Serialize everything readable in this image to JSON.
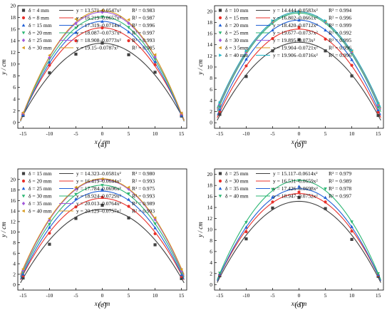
{
  "chart_data": [
    {
      "type": "scatter",
      "panel_label": "(a)",
      "xlabel": "x / cm",
      "ylabel": "y / cm",
      "xlim": [
        -16,
        16
      ],
      "ylim": [
        -1,
        20
      ],
      "xticks": [
        -15,
        -10,
        -5,
        0,
        5,
        10,
        15
      ],
      "yticks": [
        0,
        2,
        4,
        6,
        8,
        10,
        12,
        14,
        16,
        18,
        20
      ],
      "grid": false,
      "legend_position": "top",
      "series": [
        {
          "name": "δ = 4 mm",
          "marker": "square",
          "color": "#404040",
          "equation": "y = 13.571–0.0547x²",
          "r2": "R² = 0.983",
          "a": 13.571,
          "b": 0.0547,
          "points": [
            [
              -15,
              1.2
            ],
            [
              -10,
              8.5
            ],
            [
              -5,
              11.7
            ],
            [
              0,
              13.6
            ],
            [
              5,
              11.6
            ],
            [
              10,
              8.6
            ],
            [
              15,
              1.1
            ]
          ]
        },
        {
          "name": "δ = 8 mm",
          "marker": "circle",
          "color": "#e8302a",
          "equation": "y = 16.219–0.0657x²",
          "r2": "R² = 0.987",
          "a": 16.219,
          "b": 0.0657,
          "points": [
            [
              -15,
              1.4
            ],
            [
              -10,
              9.8
            ],
            [
              -5,
              14.0
            ],
            [
              0,
              16.2
            ],
            [
              5,
              14.0
            ],
            [
              10,
              9.9
            ],
            [
              15,
              1.3
            ]
          ]
        },
        {
          "name": "δ = 15 mm",
          "marker": "triangle-up",
          "color": "#1f5fd6",
          "equation": "y = 17.319–0.0714x²",
          "r2": "R² = 0.996",
          "a": 17.319,
          "b": 0.0714,
          "points": [
            [
              -15,
              1.3
            ],
            [
              -10,
              10.3
            ],
            [
              -5,
              15.4
            ],
            [
              0,
              17.3
            ],
            [
              5,
              15.5
            ],
            [
              10,
              10.4
            ],
            [
              15,
              1.2
            ]
          ]
        },
        {
          "name": "δ = 20 mm",
          "marker": "triangle-down",
          "color": "#2bb673",
          "equation": "y = 18.087–0.0737x²",
          "r2": "R² = 0.997",
          "a": 18.087,
          "b": 0.0737,
          "points": [
            [
              -15,
              1.5
            ],
            [
              -10,
              10.9
            ],
            [
              -5,
              16.2
            ],
            [
              0,
              18.1
            ],
            [
              5,
              16.3
            ],
            [
              10,
              10.8
            ],
            [
              15,
              1.4
            ]
          ]
        },
        {
          "name": "δ = 25 mm",
          "marker": "diamond",
          "color": "#a259d9",
          "equation": "y = 18.908–0.0773x²",
          "r2": "R² = 0.993",
          "a": 18.908,
          "b": 0.0773,
          "points": [
            [
              -15,
              1.6
            ],
            [
              -10,
              11.1
            ],
            [
              -5,
              17.0
            ],
            [
              0,
              18.9
            ],
            [
              5,
              17.0
            ],
            [
              10,
              11.2
            ],
            [
              15,
              1.5
            ]
          ]
        },
        {
          "name": "δ = 30 mm",
          "marker": "triangle-left",
          "color": "#d89a1e",
          "equation": "y = 19.15–0.0787x²",
          "r2": "R² = 0.985",
          "a": 19.15,
          "b": 0.0787,
          "points": [
            [
              -15,
              1.7
            ],
            [
              -10,
              11.5
            ],
            [
              -5,
              17.7
            ],
            [
              0,
              19.2
            ],
            [
              5,
              17.6
            ],
            [
              10,
              11.6
            ],
            [
              15,
              1.6
            ]
          ]
        }
      ]
    },
    {
      "type": "scatter",
      "panel_label": "(b)",
      "xlabel": "x / cm",
      "ylabel": "y / cm",
      "xlim": [
        -16,
        16
      ],
      "ylim": [
        -1,
        21
      ],
      "xticks": [
        -15,
        -10,
        -5,
        0,
        5,
        10,
        15
      ],
      "yticks": [
        0,
        2,
        4,
        6,
        8,
        10,
        12,
        14,
        16,
        18,
        20
      ],
      "grid": false,
      "legend_position": "top",
      "series": [
        {
          "name": "δ = 10 mm",
          "marker": "square",
          "color": "#404040",
          "equation": "y = 14.444–0.0583x²",
          "r2": "R² = 0.994",
          "a": 14.444,
          "b": 0.0583,
          "points": [
            [
              -15,
              1.5
            ],
            [
              -10,
              8.3
            ],
            [
              -5,
              12.9
            ],
            [
              0,
              14.9
            ],
            [
              5,
              12.9
            ],
            [
              10,
              8.4
            ],
            [
              15,
              1.3
            ]
          ]
        },
        {
          "name": "δ = 15 mm",
          "marker": "circle",
          "color": "#e8302a",
          "equation": "y = 16.802–0.0661x²",
          "r2": "R² = 0.996",
          "a": 16.802,
          "b": 0.0661,
          "points": [
            [
              -15,
              2.0
            ],
            [
              -10,
              10.2
            ],
            [
              -5,
              15.1
            ],
            [
              0,
              17.1
            ],
            [
              5,
              15.0
            ],
            [
              10,
              10.3
            ],
            [
              15,
              1.9
            ]
          ]
        },
        {
          "name": "δ = 20 mm",
          "marker": "triangle-up",
          "color": "#1f5fd6",
          "equation": "y = 18.420–0.0712x²",
          "r2": "R² = 0.999",
          "a": 18.42,
          "b": 0.0712,
          "points": [
            [
              -15,
              2.4
            ],
            [
              -10,
              11.4
            ],
            [
              -5,
              16.6
            ],
            [
              0,
              18.4
            ],
            [
              5,
              16.6
            ],
            [
              10,
              11.3
            ],
            [
              15,
              2.3
            ]
          ]
        },
        {
          "name": "δ = 25 mm",
          "marker": "triangle-down",
          "color": "#2bb673",
          "equation": "y = 19.677–0.0737x²",
          "r2": "R² = 0.992",
          "a": 19.677,
          "b": 0.0737,
          "points": [
            [
              -15,
              2.9
            ],
            [
              -10,
              12.5
            ],
            [
              -5,
              17.8
            ],
            [
              0,
              19.5
            ],
            [
              5,
              17.9
            ],
            [
              10,
              12.4
            ],
            [
              15,
              2.8
            ]
          ]
        },
        {
          "name": "δ = 30 mm",
          "marker": "diamond",
          "color": "#a259d9",
          "equation": "y = 19.895–0.073x²",
          "r2": "R² = 0.995",
          "a": 19.895,
          "b": 0.073,
          "points": [
            [
              -15,
              3.3
            ],
            [
              -10,
              12.6
            ],
            [
              -5,
              18.1
            ],
            [
              0,
              19.9
            ],
            [
              5,
              18.1
            ],
            [
              10,
              12.7
            ],
            [
              15,
              3.2
            ]
          ]
        },
        {
          "name": "δ = 3 5mm",
          "marker": "triangle-left",
          "color": "#d89a1e",
          "equation": "y = 19.904–0.0721x²",
          "r2": "R² = 0.996",
          "a": 19.904,
          "b": 0.0721,
          "points": [
            [
              -15,
              3.5
            ],
            [
              -10,
              12.8
            ],
            [
              -5,
              18.2
            ],
            [
              0,
              19.9
            ],
            [
              5,
              18.2
            ],
            [
              10,
              12.9
            ],
            [
              15,
              3.4
            ]
          ]
        },
        {
          "name": "δ = 40 mm",
          "marker": "triangle-right",
          "color": "#1fb5c8",
          "equation": "y = 19.906–0.0716x²",
          "r2": "R² = 0.996",
          "a": 19.906,
          "b": 0.0716,
          "points": [
            [
              -15,
              3.6
            ],
            [
              -10,
              12.9
            ],
            [
              -5,
              18.3
            ],
            [
              0,
              19.9
            ],
            [
              5,
              18.3
            ],
            [
              10,
              13.0
            ],
            [
              15,
              3.5
            ]
          ]
        }
      ]
    },
    {
      "type": "scatter",
      "panel_label": "(c)",
      "xlabel": "x / cm",
      "ylabel": "y / cm",
      "xlim": [
        -16,
        16
      ],
      "ylim": [
        -1,
        22
      ],
      "xticks": [
        -15,
        -10,
        -5,
        0,
        5,
        10,
        15
      ],
      "yticks": [
        0,
        2,
        4,
        6,
        8,
        10,
        12,
        14,
        16,
        18,
        20
      ],
      "grid": false,
      "legend_position": "top",
      "series": [
        {
          "name": "δ = 15 mm",
          "marker": "square",
          "color": "#404040",
          "equation": "y = 14.323–0.0581x²",
          "r2": "R² = 0.980",
          "a": 14.323,
          "b": 0.0581,
          "points": [
            [
              -15,
              1.3
            ],
            [
              -10,
              7.7
            ],
            [
              -5,
              12.6
            ],
            [
              0,
              15.1
            ],
            [
              5,
              12.7
            ],
            [
              10,
              7.6
            ],
            [
              15,
              1.2
            ]
          ]
        },
        {
          "name": "δ = 20 mm",
          "marker": "circle",
          "color": "#e8302a",
          "equation": "y = 16.419–0.0644x²",
          "r2": "R² = 0.993",
          "a": 16.419,
          "b": 0.0644,
          "points": [
            [
              -15,
              1.7
            ],
            [
              -10,
              9.8
            ],
            [
              -5,
              14.8
            ],
            [
              0,
              16.6
            ],
            [
              5,
              14.9
            ],
            [
              10,
              9.7
            ],
            [
              15,
              1.6
            ]
          ]
        },
        {
          "name": "δ = 25 mm",
          "marker": "triangle-up",
          "color": "#1f5fd6",
          "equation": "y = 17.784–0.0696x²",
          "r2": "R² = 0.975",
          "a": 17.784,
          "b": 0.0696,
          "points": [
            [
              -15,
              2.0
            ],
            [
              -10,
              10.9
            ],
            [
              -5,
              16.3
            ],
            [
              0,
              18.1
            ],
            [
              5,
              16.2
            ],
            [
              10,
              10.8
            ],
            [
              15,
              1.9
            ]
          ]
        },
        {
          "name": "δ = 30 mm",
          "marker": "triangle-down",
          "color": "#2bb673",
          "equation": "y = 18.924–0.0729x²",
          "r2": "R² = 0.993",
          "a": 18.924,
          "b": 0.0729,
          "points": [
            [
              -15,
              2.4
            ],
            [
              -10,
              11.5
            ],
            [
              -5,
              17.2
            ],
            [
              0,
              18.9
            ],
            [
              5,
              17.3
            ],
            [
              10,
              11.6
            ],
            [
              15,
              2.3
            ]
          ]
        },
        {
          "name": "δ = 35 mm",
          "marker": "diamond",
          "color": "#a259d9",
          "equation": "y = 20.013–0.0764x²",
          "r2": "R² = 0.989",
          "a": 20.013,
          "b": 0.0764,
          "points": [
            [
              -15,
              2.7
            ],
            [
              -10,
              12.3
            ],
            [
              -5,
              18.2
            ],
            [
              0,
              20.0
            ],
            [
              5,
              18.2
            ],
            [
              10,
              12.4
            ],
            [
              15,
              2.6
            ]
          ]
        },
        {
          "name": "δ = 40 mm",
          "marker": "triangle-left",
          "color": "#d89a1e",
          "equation": "y = 20.129–0.0757x²",
          "r2": "R² = 0.993",
          "a": 20.129,
          "b": 0.0757,
          "points": [
            [
              -15,
              3.0
            ],
            [
              -10,
              12.6
            ],
            [
              -5,
              18.5
            ],
            [
              0,
              20.1
            ],
            [
              5,
              18.5
            ],
            [
              10,
              12.7
            ],
            [
              15,
              2.9
            ]
          ]
        }
      ]
    },
    {
      "type": "scatter",
      "panel_label": "(d)",
      "xlabel": "x / cm",
      "ylabel": "y / cm",
      "xlim": [
        -16,
        16
      ],
      "ylim": [
        -1,
        21
      ],
      "xticks": [
        -15,
        -10,
        -5,
        0,
        5,
        10,
        15
      ],
      "yticks": [
        0,
        2,
        4,
        6,
        8,
        10,
        12,
        14,
        16,
        18,
        20
      ],
      "grid": false,
      "legend_position": "top",
      "series": [
        {
          "name": "δ = 25 mm",
          "marker": "square",
          "color": "#404040",
          "equation": "y = 15.117–0.0614x²",
          "r2": "R² = 0.979",
          "a": 15.117,
          "b": 0.0614,
          "points": [
            [
              -15,
              1.6
            ],
            [
              -10,
              8.3
            ],
            [
              -5,
              13.9
            ],
            [
              0,
              15.8
            ],
            [
              5,
              13.8
            ],
            [
              10,
              8.2
            ],
            [
              15,
              1.5
            ]
          ]
        },
        {
          "name": "δ = 30 mm",
          "marker": "circle",
          "color": "#e8302a",
          "equation": "y = 16.531–0.0659x²",
          "r2": "R² = 0.989",
          "a": 16.531,
          "b": 0.0659,
          "points": [
            [
              -15,
              1.8
            ],
            [
              -10,
              9.6
            ],
            [
              -5,
              15.0
            ],
            [
              0,
              16.8
            ],
            [
              5,
              15.0
            ],
            [
              10,
              9.7
            ],
            [
              15,
              1.7
            ]
          ]
        },
        {
          "name": "δ = 35 mm",
          "marker": "triangle-up",
          "color": "#1f5fd6",
          "equation": "y = 17.426–0.0698x²",
          "r2": "R² = 0.978",
          "a": 17.426,
          "b": 0.0698,
          "points": [
            [
              -15,
              1.9
            ],
            [
              -10,
              10.4
            ],
            [
              -5,
              15.9
            ],
            [
              0,
              17.8
            ],
            [
              5,
              15.8
            ],
            [
              10,
              10.5
            ],
            [
              15,
              1.8
            ]
          ]
        },
        {
          "name": "δ = 40 mm",
          "marker": "triangle-down",
          "color": "#2bb673",
          "equation": "y = 18.947–0.0752x²",
          "r2": "R² = 0.997",
          "a": 18.947,
          "b": 0.0752,
          "points": [
            [
              -15,
              2.1
            ],
            [
              -10,
              11.3
            ],
            [
              -5,
              17.3
            ],
            [
              0,
              18.9
            ],
            [
              5,
              17.4
            ],
            [
              10,
              11.4
            ],
            [
              15,
              2.0
            ]
          ]
        }
      ]
    }
  ]
}
